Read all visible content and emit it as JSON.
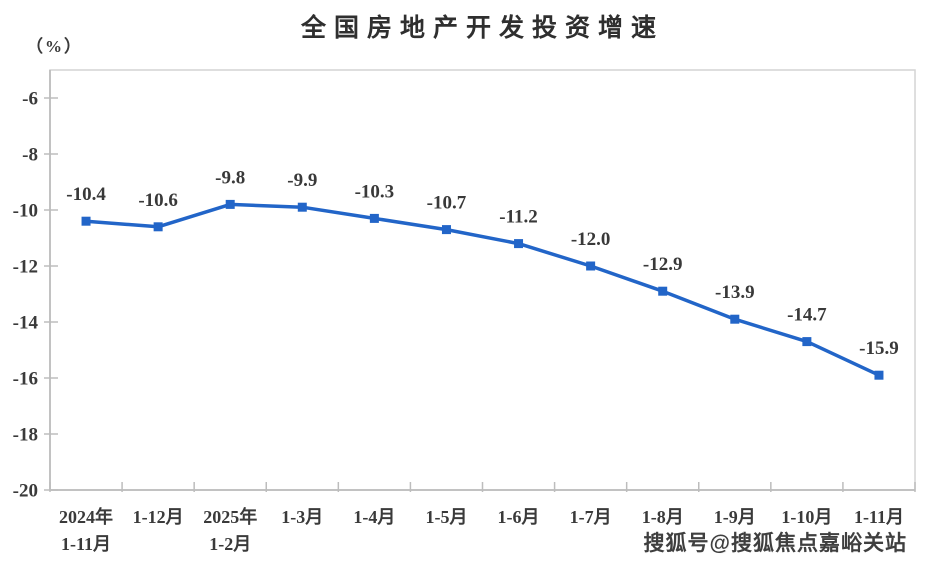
{
  "chart": {
    "title": "全国房地产开发投资增速",
    "y_axis_unit": "（%）",
    "watermark": "搜狐号@搜狐焦点嘉峪关站"
  },
  "chart_data": {
    "type": "line",
    "title": "全国房地产开发投资增速",
    "ylabel": "（%）",
    "xlabel": "",
    "categories": [
      "2024年\n1-11月",
      "1-12月",
      "2025年\n1-2月",
      "1-3月",
      "1-4月",
      "1-5月",
      "1-6月",
      "1-7月",
      "1-8月",
      "1-9月",
      "1-10月",
      "1-11月"
    ],
    "series": [
      {
        "name": "全国房地产开发投资增速",
        "values": [
          -10.4,
          -10.6,
          -9.8,
          -9.9,
          -10.3,
          -10.7,
          -11.2,
          -12.0,
          -12.9,
          -13.9,
          -14.7,
          -15.9
        ]
      }
    ],
    "data_labels_visible": true,
    "data_label_decimals": 1,
    "ylim": [
      -20,
      -5
    ],
    "yticks": [
      -6,
      -8,
      -10,
      -12,
      -14,
      -16,
      -18,
      -20
    ],
    "grid": false,
    "legend_position": "none",
    "line_color": "#2265C8",
    "marker_shape": "square",
    "label_text_color": "#393939",
    "axis_text_color": "#3a3a3a",
    "axis_line_color": "#bdbdbd",
    "plot_border_color": "#d4d4d4"
  }
}
